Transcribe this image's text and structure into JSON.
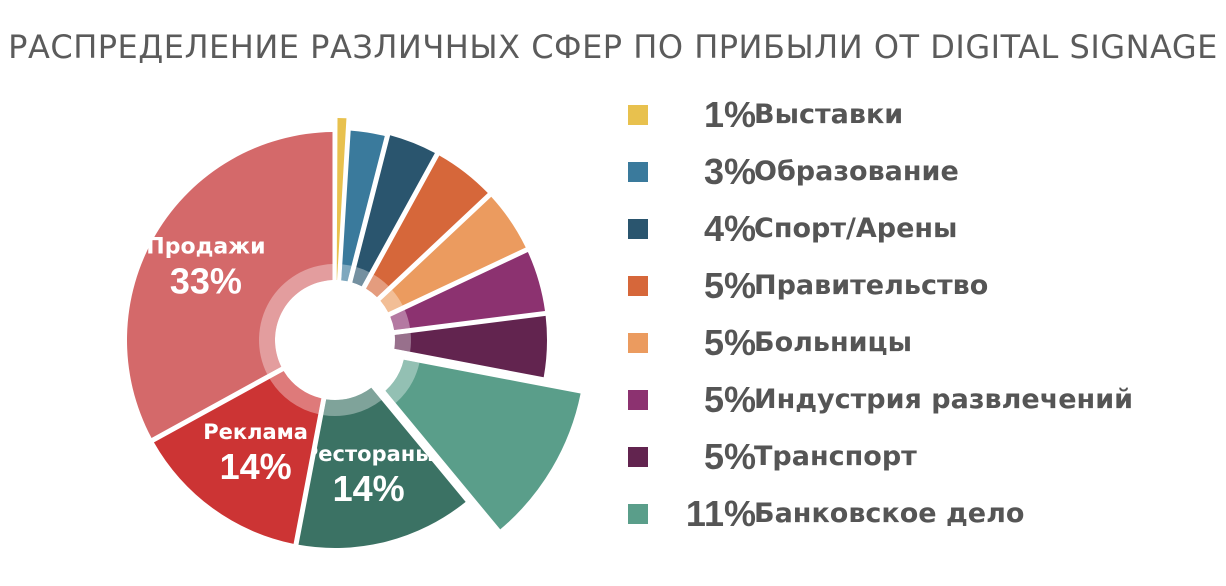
{
  "title": "РАСПРЕДЕЛЕНИЕ РАЗЛИЧНЫХ СФЕР ПО ПРИБЫЛИ ОТ DIGITAL SIGNAGE",
  "chart_data": {
    "type": "pie",
    "title": "РАСПРЕДЕЛЕНИЕ РАЗЛИЧНЫХ СФЕР ПО ПРИБЫЛИ ОТ DIGITAL SIGNAGE",
    "legend_position": "right",
    "slices": [
      {
        "name": "Выставки",
        "value": 1,
        "label": "1%",
        "color": "#e8c14e",
        "in_legend": true
      },
      {
        "name": "Образование",
        "value": 3,
        "label": "3%",
        "color": "#3a7a9c",
        "in_legend": true
      },
      {
        "name": "Спорт/Арены",
        "value": 4,
        "label": "4%",
        "color": "#2a556e",
        "in_legend": true
      },
      {
        "name": "Правительство",
        "value": 5,
        "label": "5%",
        "color": "#d6673a",
        "in_legend": true
      },
      {
        "name": "Больницы",
        "value": 5,
        "label": "5%",
        "color": "#eb9b5f",
        "in_legend": true
      },
      {
        "name": "Индустрия развлечений",
        "value": 5,
        "label": "5%",
        "color": "#8c3270",
        "in_legend": true
      },
      {
        "name": "Транспорт",
        "value": 5,
        "label": "5%",
        "color": "#62244f",
        "in_legend": true
      },
      {
        "name": "Банковское дело",
        "value": 11,
        "label": "11%",
        "color": "#5a9e8a",
        "in_legend": true
      },
      {
        "name": "Рестораны",
        "value": 14,
        "label": "14%",
        "color": "#3b7264",
        "in_legend": false
      },
      {
        "name": "Реклама",
        "value": 14,
        "label": "14%",
        "color": "#cc3434",
        "in_legend": false
      },
      {
        "name": "Продажи",
        "value": 33,
        "label": "33%",
        "color": "#d4696a",
        "in_legend": false
      }
    ]
  }
}
